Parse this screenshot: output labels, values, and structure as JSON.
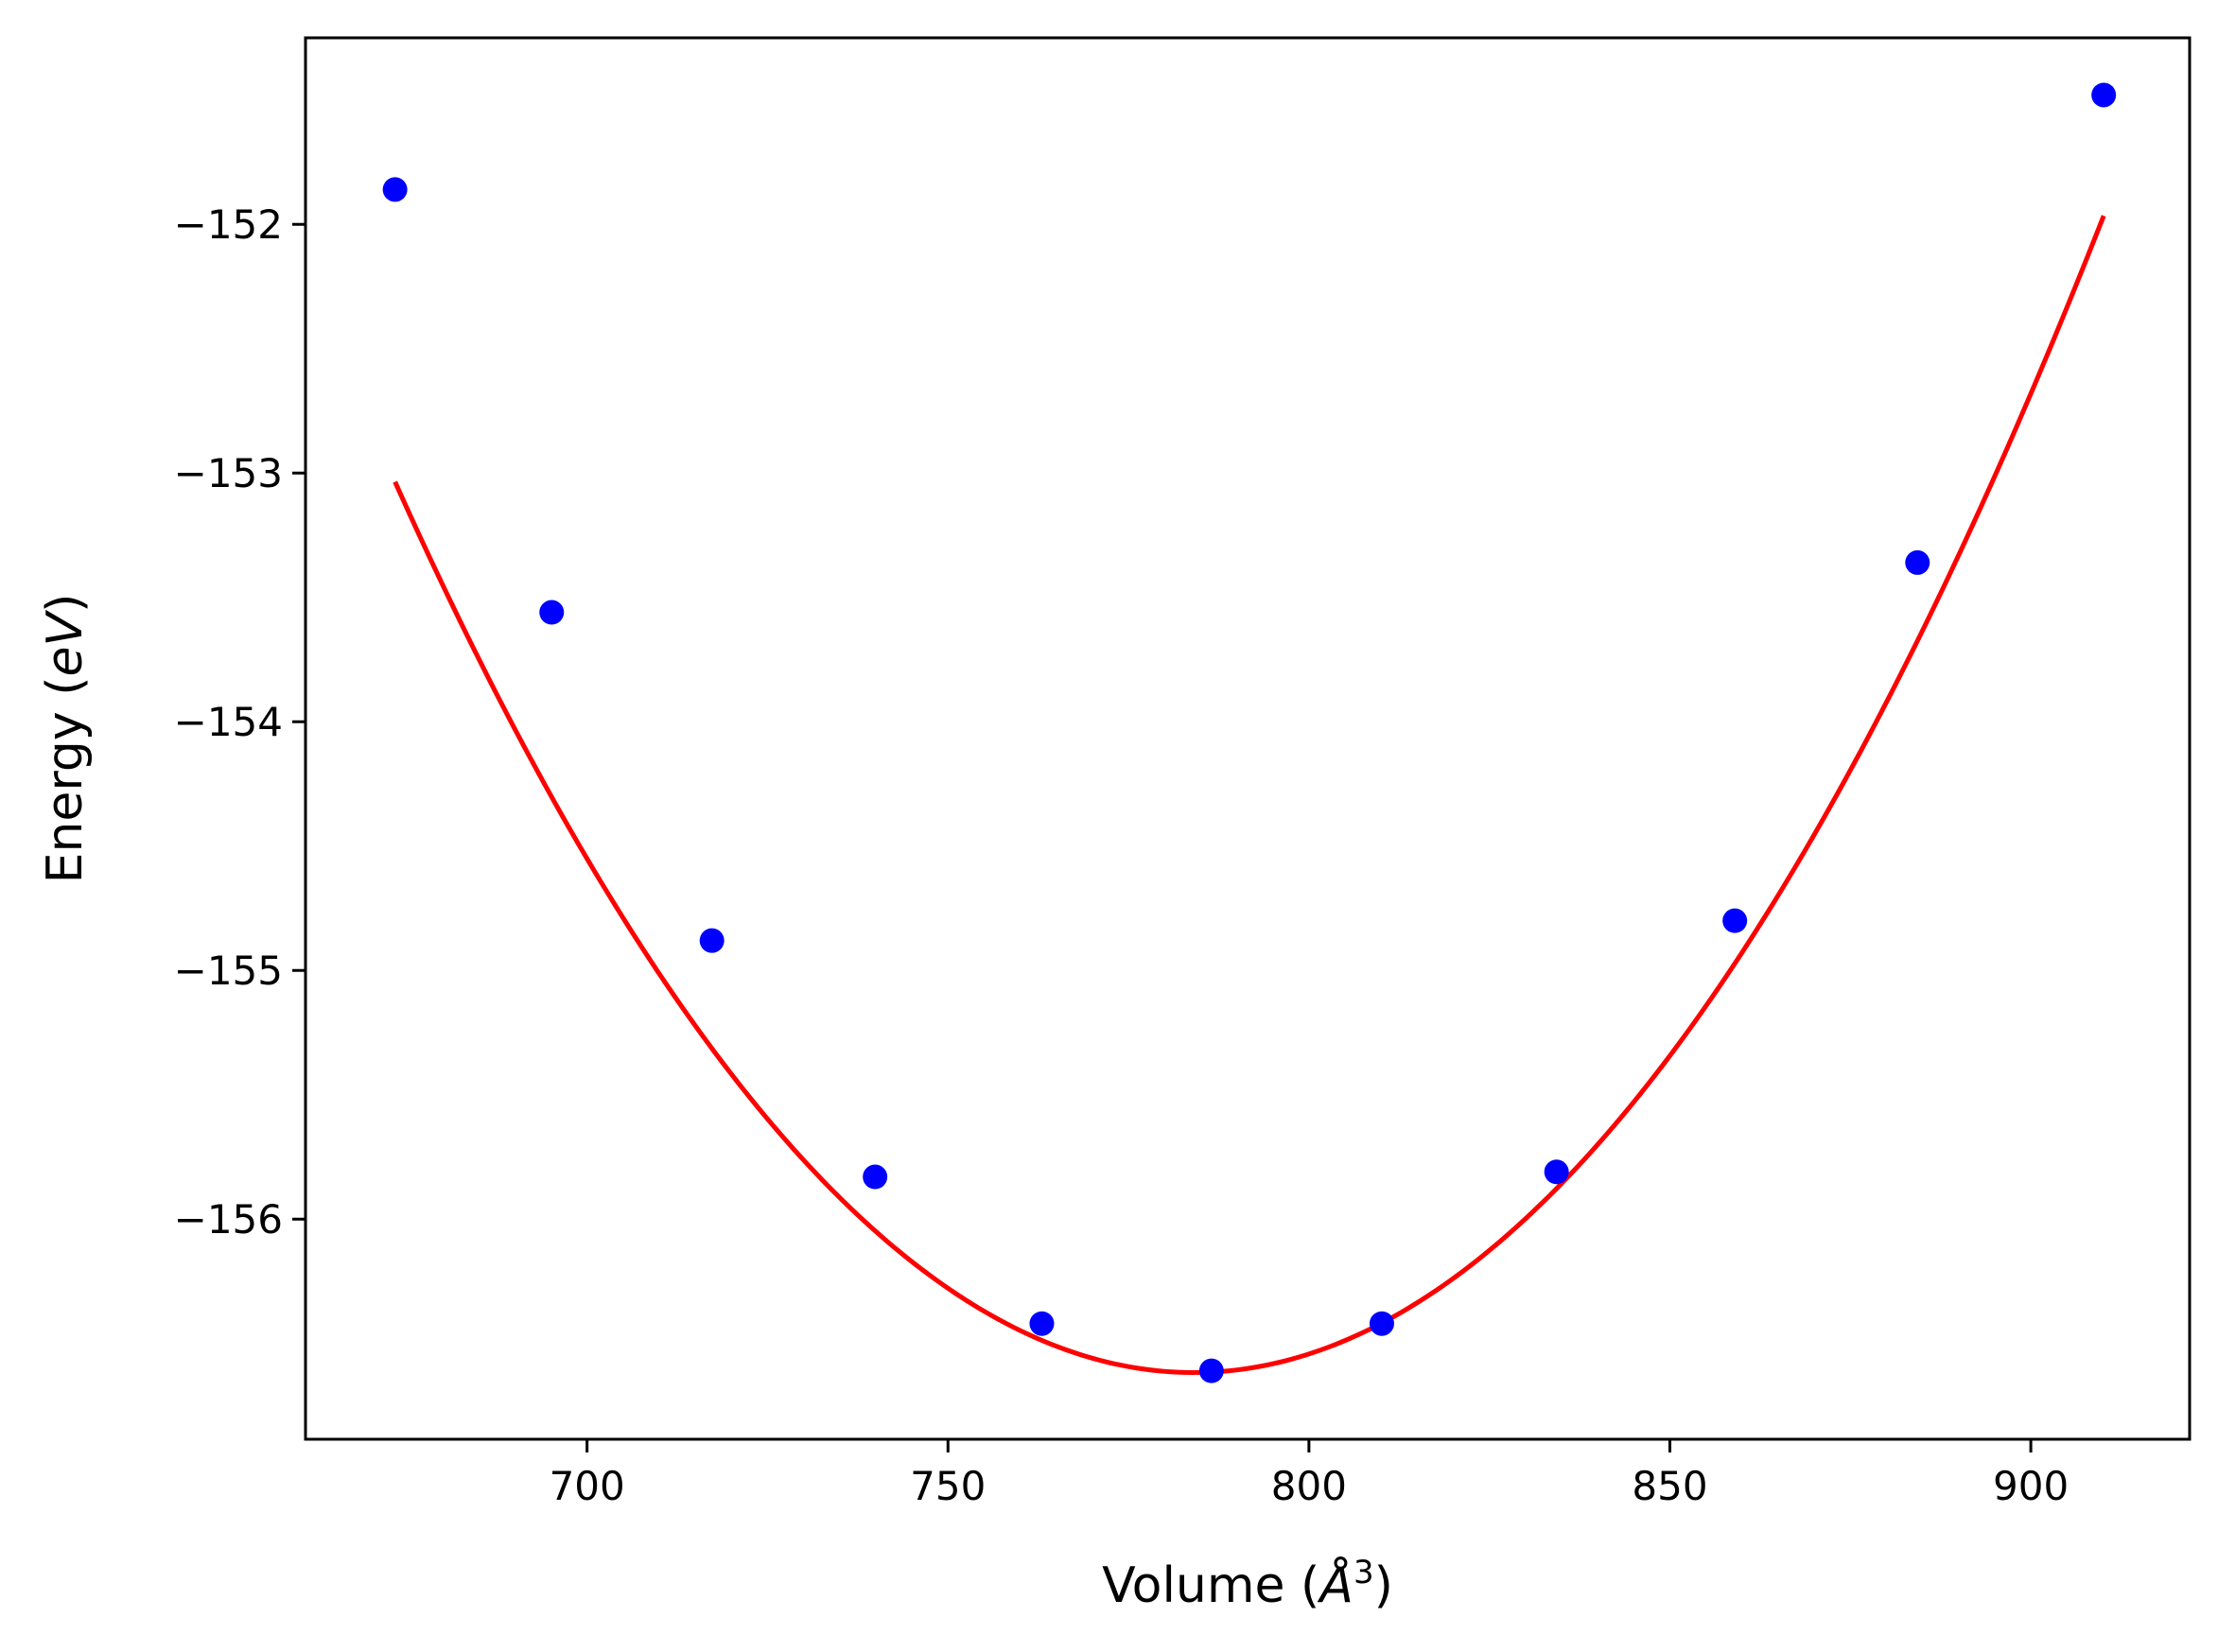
{
  "chart_data": {
    "type": "line",
    "title": "",
    "xlabel": "Volume",
    "xlabel_unit_base": "Å",
    "xlabel_unit_exp": "3",
    "ylabel": "Energy",
    "ylabel_unit": "eV",
    "xlim": [
      661,
      922
    ],
    "ylim": [
      -156.885,
      -151.25
    ],
    "xticks": [
      700,
      750,
      800,
      850,
      900
    ],
    "yticks": [
      -152,
      -153,
      -154,
      -155,
      -156
    ],
    "xtick_labels": [
      "700",
      "750",
      "800",
      "850",
      "900"
    ],
    "ytick_labels": [
      "−152",
      "−153",
      "−154",
      "−155",
      "−156"
    ],
    "grid": false,
    "legend": "none",
    "series": [
      {
        "kind": "scatter",
        "color": "#0000ff",
        "marker": "circle",
        "x": [
          673.4,
          695.1,
          717.3,
          739.9,
          763.0,
          786.5,
          810.1,
          834.3,
          859.0,
          884.3,
          910.1
        ],
        "y": [
          -151.86,
          -153.56,
          -154.88,
          -155.83,
          -156.42,
          -156.61,
          -156.42,
          -155.81,
          -154.8,
          -153.36,
          -151.48
        ]
      },
      {
        "kind": "line",
        "color": "#ff0000",
        "fit": "quadratic",
        "fit_coeffs": [
          0.00029264,
          -0.458876,
          23.269
        ],
        "x_range": [
          673.4,
          910.1
        ]
      }
    ],
    "colors": {
      "points": "#0000ff",
      "fit_line": "#ff0000",
      "axes": "#000000",
      "background": "#ffffff"
    }
  }
}
